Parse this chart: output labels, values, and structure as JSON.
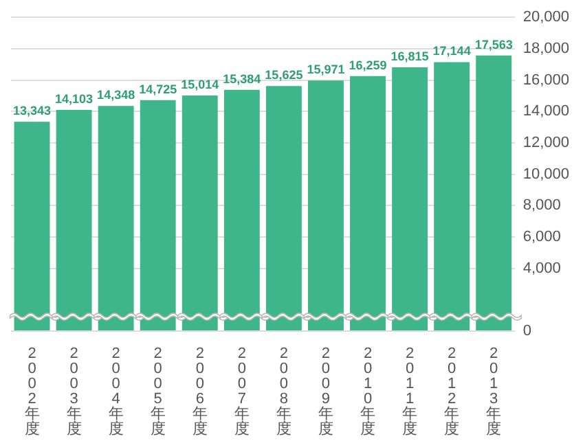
{
  "chart_data": {
    "type": "bar",
    "categories": [
      "2002年度",
      "2003年度",
      "2004年度",
      "2005年度",
      "2006年度",
      "2007年度",
      "2008年度",
      "2009年度",
      "2010年度",
      "2011年度",
      "2012年度",
      "2013年度"
    ],
    "values": [
      13343,
      14103,
      14348,
      14725,
      15014,
      15384,
      15625,
      15971,
      16259,
      16815,
      17144,
      17563
    ],
    "value_labels": [
      "13,343",
      "14,103",
      "14,348",
      "14,725",
      "15,014",
      "15,384",
      "15,625",
      "15,971",
      "16,259",
      "16,815",
      "17,144",
      "17,563"
    ],
    "color": "#3fb58c",
    "ylim": [
      0,
      20000
    ],
    "yticks": [
      {
        "value": 0,
        "label": "0"
      },
      {
        "value": 4000,
        "label": "4,000"
      },
      {
        "value": 6000,
        "label": "6,000"
      },
      {
        "value": 8000,
        "label": "8,000"
      },
      {
        "value": 10000,
        "label": "10,000"
      },
      {
        "value": 12000,
        "label": "12,000"
      },
      {
        "value": 14000,
        "label": "14,000"
      },
      {
        "value": 16000,
        "label": "16,000"
      },
      {
        "value": 18000,
        "label": "18,000"
      },
      {
        "value": 20000,
        "label": "20,000"
      }
    ],
    "grid": "y",
    "legend": false
  }
}
